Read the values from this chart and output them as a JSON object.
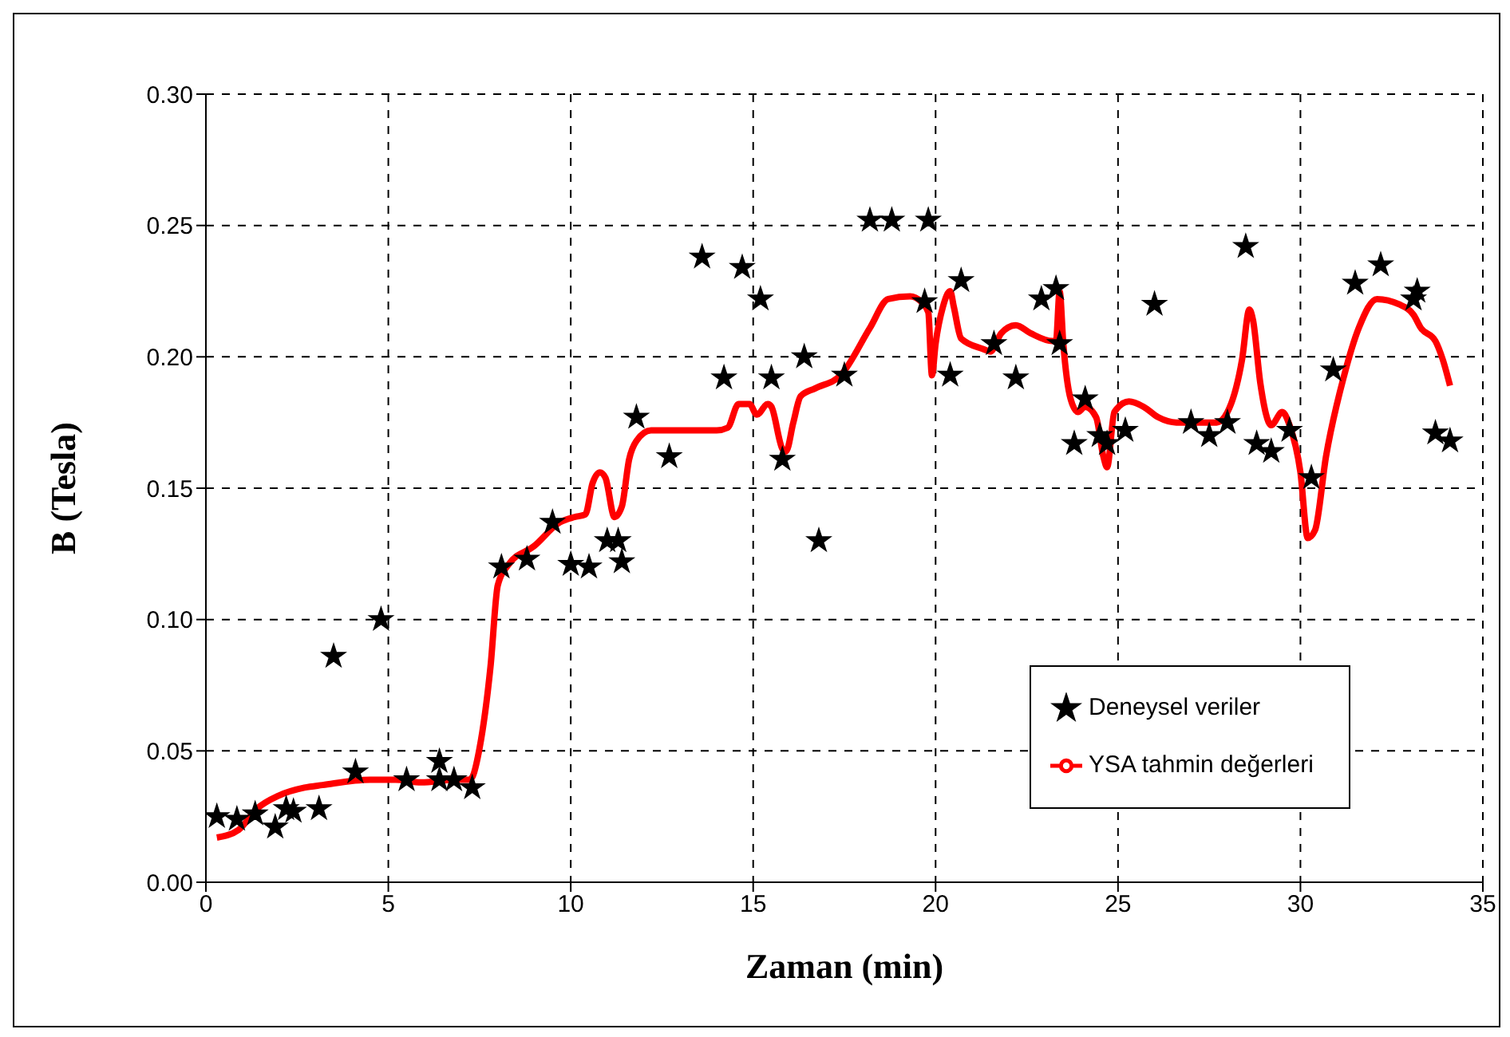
{
  "chart_data": {
    "type": "scatter",
    "xlabel": "Zaman (min)",
    "ylabel": "B   (Tesla)",
    "xlim": [
      0,
      35
    ],
    "xticks": [
      0,
      5,
      10,
      15,
      20,
      25,
      30,
      35
    ],
    "ylim": [
      0,
      0.3
    ],
    "yticks": [
      {
        "value": 0,
        "label": "0.00"
      },
      {
        "value": 0.05,
        "label": "0.05"
      },
      {
        "value": 0.1,
        "label": "0.10"
      },
      {
        "value": 0.15,
        "label": "0.15"
      },
      {
        "value": 0.2,
        "label": "0.20"
      },
      {
        "value": 0.25,
        "label": "0.25"
      },
      {
        "value": 0.3,
        "label": "0.30"
      }
    ],
    "grid": true,
    "legend": "bottom right",
    "series": [
      {
        "name": "Deneysel veriler",
        "type": "scatter",
        "marker": "star",
        "color": "#000000",
        "x": [
          0.3,
          0.85,
          1.35,
          1.9,
          2.2,
          2.4,
          3.1,
          3.5,
          4.1,
          4.8,
          5.5,
          6.4,
          6.4,
          6.8,
          7.3,
          8.1,
          8.8,
          9.5,
          10.0,
          10.5,
          11.0,
          11.3,
          11.4,
          11.8,
          12.7,
          13.6,
          14.2,
          14.7,
          15.2,
          15.5,
          15.8,
          16.4,
          16.8,
          17.5,
          18.2,
          18.8,
          19.7,
          19.8,
          20.4,
          20.7,
          21.6,
          22.2,
          22.9,
          23.3,
          23.4,
          23.8,
          24.1,
          24.5,
          24.7,
          25.2,
          26.0,
          27.0,
          27.5,
          28.0,
          28.5,
          28.8,
          29.2,
          29.7,
          30.3,
          30.9,
          31.5,
          32.2,
          33.1,
          33.2,
          33.7,
          34.1
        ],
        "values": [
          0.025,
          0.024,
          0.026,
          0.021,
          0.028,
          0.027,
          0.028,
          0.086,
          0.042,
          0.1,
          0.039,
          0.046,
          0.039,
          0.039,
          0.036,
          0.12,
          0.123,
          0.137,
          0.121,
          0.12,
          0.13,
          0.13,
          0.122,
          0.177,
          0.162,
          0.238,
          0.192,
          0.234,
          0.222,
          0.192,
          0.161,
          0.2,
          0.13,
          0.193,
          0.252,
          0.252,
          0.221,
          0.252,
          0.193,
          0.229,
          0.205,
          0.192,
          0.222,
          0.226,
          0.205,
          0.167,
          0.184,
          0.17,
          0.167,
          0.172,
          0.22,
          0.175,
          0.17,
          0.175,
          0.242,
          0.167,
          0.164,
          0.172,
          0.154,
          0.195,
          0.228,
          0.235,
          0.222,
          0.225,
          0.171,
          0.168
        ]
      },
      {
        "name": "YSA tahmin değerleri",
        "type": "line",
        "marker": "none",
        "color": "#ff0000",
        "x": [
          0.3,
          0.9,
          1.4,
          2.0,
          2.7,
          3.2,
          4.5,
          5.2,
          5.9,
          6.8,
          7.2,
          7.3,
          7.5,
          7.8,
          8.0,
          8.3,
          9.0,
          9.7,
          10.1,
          10.4,
          10.6,
          10.8,
          10.95,
          11.2,
          11.4,
          11.6,
          11.8,
          12.2,
          14.0,
          14.3,
          14.6,
          14.9,
          15.1,
          15.4,
          15.5,
          15.8,
          15.9,
          16.1,
          16.3,
          16.7,
          17.4,
          18.2,
          18.7,
          19.3,
          19.6,
          19.8,
          19.9,
          20.0,
          20.2,
          20.4,
          20.5,
          20.7,
          21.3,
          21.5,
          21.8,
          22.2,
          22.6,
          23.2,
          23.3,
          23.4,
          23.5,
          23.7,
          23.9,
          24.1,
          24.4,
          24.6,
          24.7,
          24.9,
          25.3,
          25.7,
          26.1,
          26.6,
          27.7,
          28.0,
          28.4,
          28.6,
          28.7,
          28.9,
          29.2,
          29.5,
          29.7,
          30.0,
          30.2,
          30.4,
          30.7,
          31.2,
          31.6,
          32.1,
          32.7,
          33.1,
          33.3,
          33.7,
          33.9,
          34.1
        ],
        "values": [
          0.017,
          0.02,
          0.028,
          0.033,
          0.036,
          0.037,
          0.039,
          0.039,
          0.038,
          0.039,
          0.039,
          0.04,
          0.051,
          0.082,
          0.113,
          0.121,
          0.128,
          0.137,
          0.139,
          0.14,
          0.152,
          0.156,
          0.154,
          0.139,
          0.143,
          0.161,
          0.168,
          0.172,
          0.172,
          0.173,
          0.182,
          0.182,
          0.178,
          0.182,
          0.181,
          0.165,
          0.164,
          0.175,
          0.185,
          0.188,
          0.193,
          0.211,
          0.222,
          0.223,
          0.221,
          0.217,
          0.193,
          0.205,
          0.219,
          0.225,
          0.219,
          0.207,
          0.203,
          0.202,
          0.209,
          0.212,
          0.209,
          0.206,
          0.206,
          0.225,
          0.205,
          0.184,
          0.179,
          0.181,
          0.177,
          0.162,
          0.158,
          0.179,
          0.183,
          0.181,
          0.177,
          0.175,
          0.175,
          0.179,
          0.199,
          0.218,
          0.214,
          0.19,
          0.174,
          0.179,
          0.174,
          0.156,
          0.131,
          0.134,
          0.162,
          0.193,
          0.211,
          0.222,
          0.22,
          0.216,
          0.211,
          0.206,
          0.199,
          0.189
        ]
      }
    ]
  }
}
